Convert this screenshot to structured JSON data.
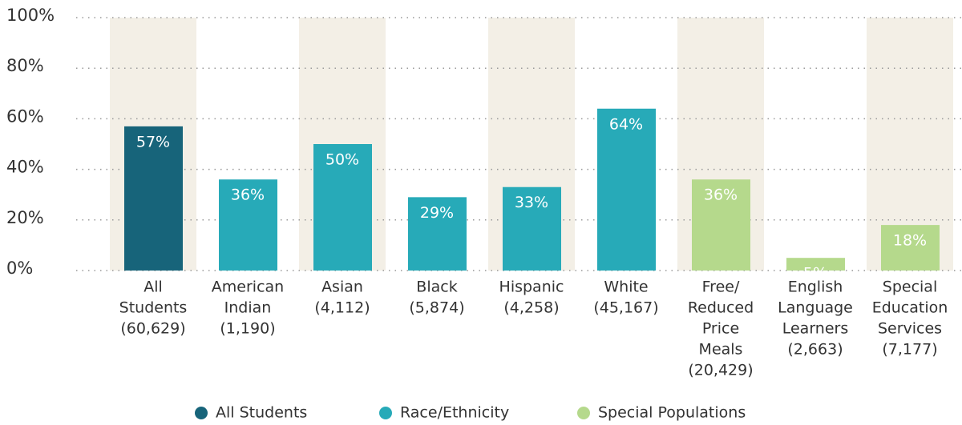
{
  "chart_data": {
    "type": "bar",
    "categories": [
      [
        "All",
        "Students",
        "(60,629)"
      ],
      [
        "American",
        "Indian",
        "(1,190)"
      ],
      [
        "Asian",
        "(4,112)"
      ],
      [
        "Black",
        "(5,874)"
      ],
      [
        "Hispanic",
        "(4,258)"
      ],
      [
        "White",
        "(45,167)"
      ],
      [
        "Free/",
        "Reduced",
        "Price",
        "Meals",
        "(20,429)"
      ],
      [
        "English",
        "Language",
        "Learners",
        "(2,663)"
      ],
      [
        "Special",
        "Education",
        "Services",
        "(7,177)"
      ]
    ],
    "series": [
      {
        "name": "All Students",
        "color": "#17647a",
        "values": [
          57,
          null,
          null,
          null,
          null,
          null,
          null,
          null,
          null
        ],
        "value_labels": [
          "57%",
          null,
          null,
          null,
          null,
          null,
          null,
          null,
          null
        ]
      },
      {
        "name": "Race/Ethnicity",
        "color": "#27aab8",
        "values": [
          null,
          36,
          50,
          29,
          33,
          64,
          null,
          null,
          null
        ],
        "value_labels": [
          null,
          "36%",
          "50%",
          "29%",
          "33%",
          "64%",
          null,
          null,
          null
        ]
      },
      {
        "name": "Special Populations",
        "color": "#b5d98c",
        "values": [
          null,
          null,
          null,
          null,
          null,
          null,
          36,
          5,
          18
        ],
        "value_labels": [
          null,
          null,
          null,
          null,
          null,
          null,
          "36%",
          "5%",
          "18%"
        ]
      }
    ],
    "ylim": [
      0,
      100
    ],
    "yticks": [
      {
        "value": 0,
        "label": "0%"
      },
      {
        "value": 20,
        "label": "20%"
      },
      {
        "value": 40,
        "label": "40%"
      },
      {
        "value": 60,
        "label": "60%"
      },
      {
        "value": 80,
        "label": "80%"
      },
      {
        "value": 100,
        "label": "100%"
      }
    ],
    "grid": true,
    "legend": "bottom"
  }
}
